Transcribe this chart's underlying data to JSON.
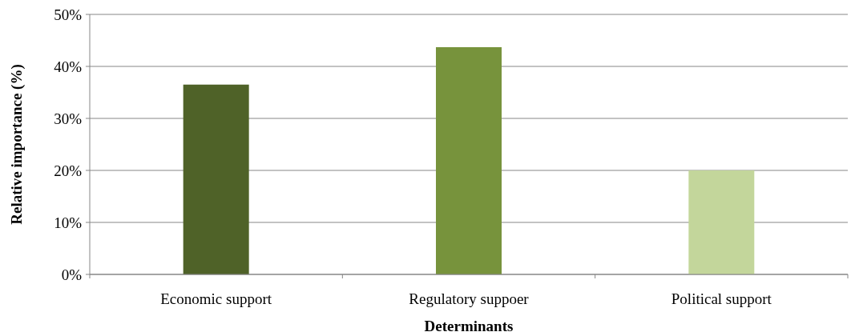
{
  "chart_data": {
    "type": "bar",
    "xlabel": "Determinants",
    "ylabel": "Relative importance (%)",
    "categories": [
      "Economic support",
      "Regulatory suppoer",
      "Political support"
    ],
    "values": [
      36.5,
      43.7,
      20
    ],
    "colors": [
      "#4f6228",
      "#77933c",
      "#c3d69b"
    ],
    "ylim": [
      0,
      50
    ],
    "yticks": [
      {
        "value": 0,
        "label": "0%"
      },
      {
        "value": 10,
        "label": "10%"
      },
      {
        "value": 20,
        "label": "20%"
      },
      {
        "value": 30,
        "label": "30%"
      },
      {
        "value": 40,
        "label": "40%"
      },
      {
        "value": 50,
        "label": "50%"
      }
    ],
    "grid": "y"
  }
}
